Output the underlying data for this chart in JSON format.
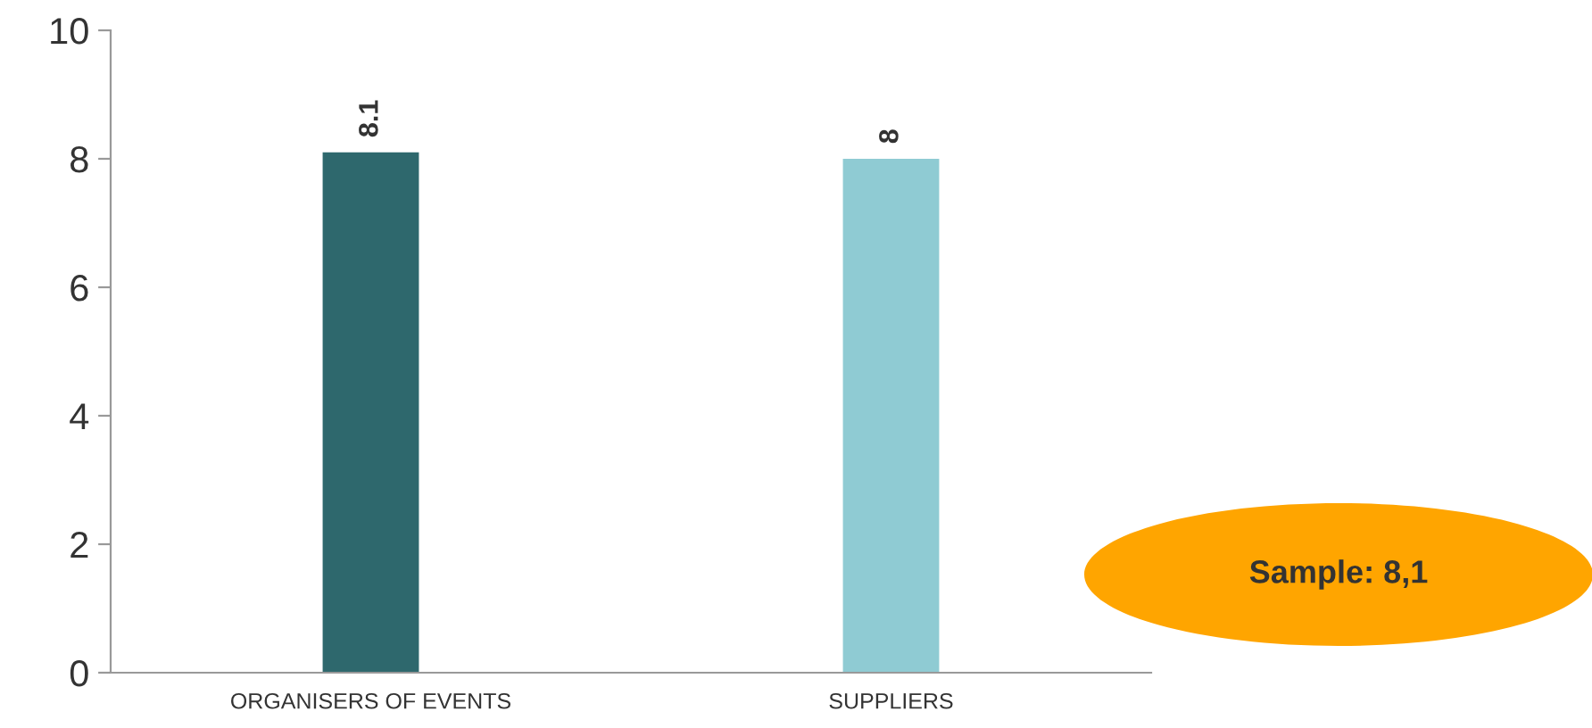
{
  "chart_data": {
    "type": "bar",
    "categories": [
      "ORGANISERS OF EVENTS",
      "SUPPLIERS"
    ],
    "values": [
      8.1,
      8
    ],
    "colors": [
      "#2e686d",
      "#8fcbd3"
    ],
    "ylim": [
      0,
      10
    ],
    "yticks": [
      0,
      2,
      4,
      6,
      8,
      10
    ],
    "data_labels": true,
    "grid": false,
    "legend": false,
    "annotations": [
      "Sample: 8,1"
    ]
  }
}
